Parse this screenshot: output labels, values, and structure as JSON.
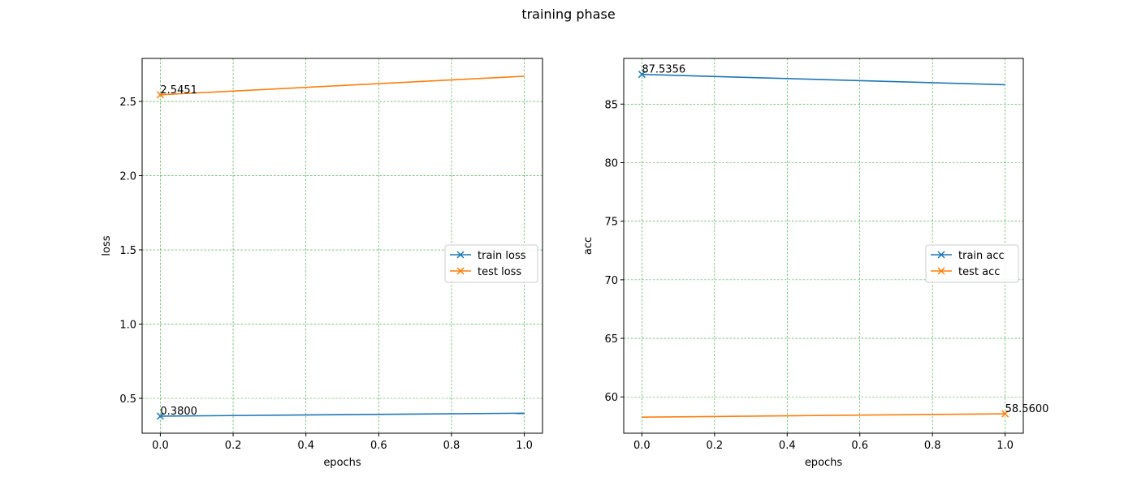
{
  "suptitle": "training phase",
  "chart_data": [
    {
      "type": "line",
      "xlabel": "epochs",
      "ylabel": "loss",
      "xlim": [
        -0.05,
        1.05
      ],
      "ylim": [
        0.265,
        2.79
      ],
      "xticks": [
        0.0,
        0.2,
        0.4,
        0.6,
        0.8,
        1.0
      ],
      "xtick_labels": [
        "0.0",
        "0.2",
        "0.4",
        "0.6",
        "0.8",
        "1.0"
      ],
      "yticks": [
        0.5,
        1.0,
        1.5,
        2.0,
        2.5
      ],
      "ytick_labels": [
        "0.5",
        "1.0",
        "1.5",
        "2.0",
        "2.5"
      ],
      "grid": true,
      "grid_color": "#2ca02c",
      "legend_position": "center-right",
      "x": [
        0,
        1
      ],
      "series": [
        {
          "name": "train loss",
          "values": [
            0.38,
            0.4
          ],
          "color": "#1f77b4",
          "marker": "x",
          "marker_indices": [
            0
          ]
        },
        {
          "name": "test loss",
          "values": [
            2.5451,
            2.67
          ],
          "color": "#ff7f0e",
          "marker": "x",
          "marker_indices": [
            0
          ]
        }
      ],
      "annotations": [
        {
          "text": "2.5451",
          "x": 0,
          "y": 2.5451
        },
        {
          "text": "0.3800",
          "x": 0,
          "y": 0.38
        }
      ]
    },
    {
      "type": "line",
      "xlabel": "epochs",
      "ylabel": "acc",
      "xlim": [
        -0.05,
        1.05
      ],
      "ylim": [
        56.9,
        88.9
      ],
      "xticks": [
        0.0,
        0.2,
        0.4,
        0.6,
        0.8,
        1.0
      ],
      "xtick_labels": [
        "0.0",
        "0.2",
        "0.4",
        "0.6",
        "0.8",
        "1.0"
      ],
      "yticks": [
        60,
        65,
        70,
        75,
        80,
        85
      ],
      "ytick_labels": [
        "60",
        "65",
        "70",
        "75",
        "80",
        "85"
      ],
      "grid": true,
      "grid_color": "#2ca02c",
      "legend_position": "center-right",
      "x": [
        0,
        1
      ],
      "series": [
        {
          "name": "train acc",
          "values": [
            87.5356,
            86.65
          ],
          "color": "#1f77b4",
          "marker": "x",
          "marker_indices": [
            0
          ]
        },
        {
          "name": "test acc",
          "values": [
            58.27,
            58.56
          ],
          "color": "#ff7f0e",
          "marker": "x",
          "marker_indices": [
            1
          ]
        }
      ],
      "annotations": [
        {
          "text": "87.5356",
          "x": 0,
          "y": 87.5356
        },
        {
          "text": "58.5600",
          "x": 1,
          "y": 58.56
        }
      ]
    }
  ]
}
